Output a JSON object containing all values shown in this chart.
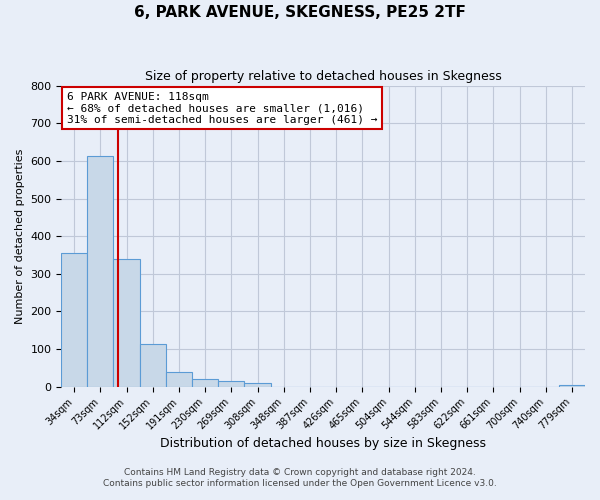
{
  "title": "6, PARK AVENUE, SKEGNESS, PE25 2TF",
  "subtitle": "Size of property relative to detached houses in Skegness",
  "xlabel": "Distribution of detached houses by size in Skegness",
  "ylabel": "Number of detached properties",
  "footnote1": "Contains HM Land Registry data © Crown copyright and database right 2024.",
  "footnote2": "Contains public sector information licensed under the Open Government Licence v3.0.",
  "bar_edges": [
    34,
    73,
    112,
    152,
    191,
    230,
    269,
    308,
    348,
    387,
    426,
    465,
    504,
    544,
    583,
    622,
    661,
    700,
    740,
    779,
    818
  ],
  "bar_heights": [
    355,
    612,
    340,
    113,
    38,
    22,
    15,
    10,
    0,
    0,
    0,
    0,
    0,
    0,
    0,
    0,
    0,
    0,
    0,
    5
  ],
  "bar_color": "#c8d8e8",
  "bar_edge_color": "#5b9bd5",
  "property_line_x": 118,
  "property_line_color": "#cc0000",
  "ylim": [
    0,
    800
  ],
  "yticks": [
    0,
    100,
    200,
    300,
    400,
    500,
    600,
    700,
    800
  ],
  "annotation_text_line1": "6 PARK AVENUE: 118sqm",
  "annotation_text_line2": "← 68% of detached houses are smaller (1,016)",
  "annotation_text_line3": "31% of semi-detached houses are larger (461) →",
  "annotation_box_color": "#ffffff",
  "annotation_box_edge_color": "#cc0000",
  "grid_color": "#c0c8d8",
  "bg_color": "#e8eef8"
}
